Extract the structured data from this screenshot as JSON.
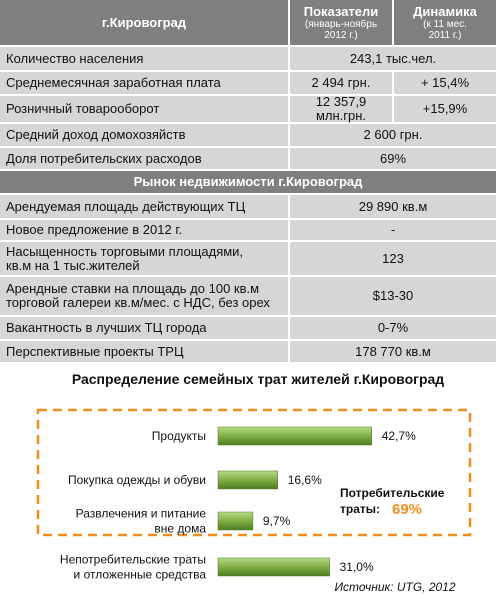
{
  "table": {
    "header": {
      "city": "г.Кировоград",
      "col2_title": "Показатели",
      "col2_sub": "(январь-ноябрь\n2012 г.)",
      "col3_title": "Динамика",
      "col3_sub": "(к  11 мес.\n2011 г.)"
    },
    "rows": [
      [
        "Количество населения",
        "243,1 тыс.чел."
      ],
      [
        "Среднемесячная заработная плата",
        "2 494 грн.",
        "+ 15,4%"
      ],
      [
        "Розничный товарооборот",
        "12 357,9\nмлн.грн.",
        "+15,9%"
      ],
      [
        "Средний доход домохозяйств",
        "2 600 грн."
      ],
      [
        "Доля потребительских расходов",
        "69%"
      ]
    ],
    "section_title": "Рынок недвижимости г.Кировоград",
    "rows2": [
      [
        "Арендуемая площадь действующих ТЦ",
        "29 890 кв.м"
      ],
      [
        "Новое предложение в 2012 г.",
        "-"
      ],
      [
        "Насыщенность торговыми площадями,\nкв.м на 1 тыс.жителей",
        "123"
      ],
      [
        "Арендные ставки на площадь  до 100 кв.м\nторговой галереи кв.м/мес. с НДС, без орех",
        "$13-30"
      ],
      [
        "Вакантность в лучших ТЦ города",
        "0-7%"
      ],
      [
        "Перспективные проекты ТРЦ",
        "178 770 кв.м"
      ]
    ]
  },
  "chart_data": {
    "type": "bar",
    "orientation": "horizontal",
    "title": "Распределение семейных трат жителей г.Кировоград",
    "categories": [
      "Продукты",
      "Покупка одежды и обуви",
      "Развлечения и питание\nвне дома",
      "Непотребительские траты\nи отложенные средства"
    ],
    "values": [
      42.7,
      16.6,
      9.7,
      31.0
    ],
    "value_labels": [
      "42,7%",
      "16,6%",
      "9,7%",
      "31,0%"
    ],
    "annotation": {
      "text": "Потребительские\nтраты:",
      "value": 69,
      "value_label": "69%"
    },
    "source": "Источник: UTG, 2012"
  }
}
